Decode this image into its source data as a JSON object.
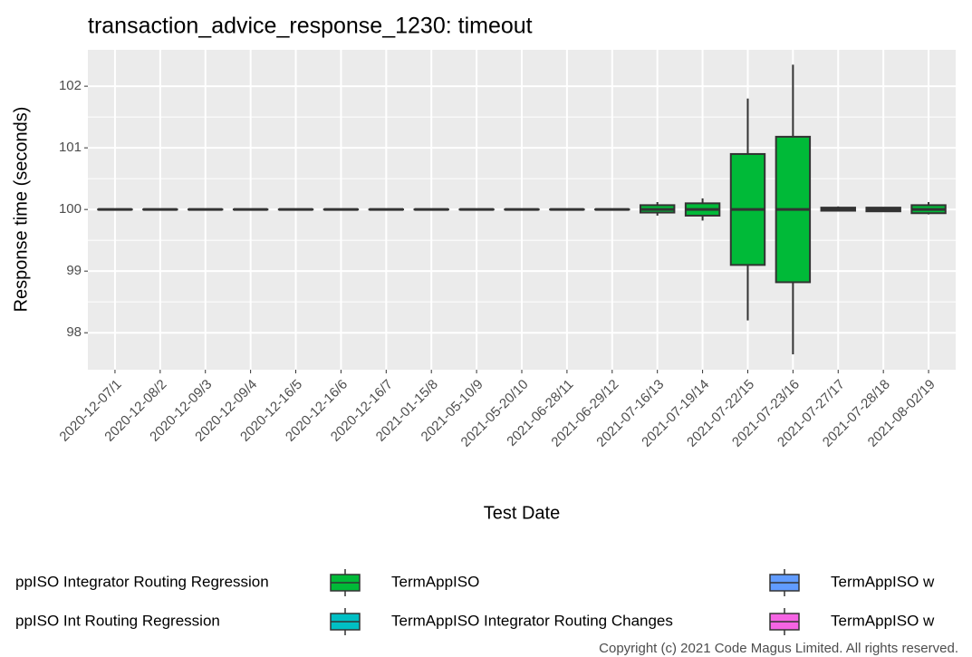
{
  "chart_data": {
    "type": "box",
    "title": "transaction_advice_response_1230: timeout",
    "y_label": "Response time (seconds)",
    "x_label": "Test Date",
    "categories": [
      "2020-12-07/1",
      "2020-12-08/2",
      "2020-12-09/3",
      "2020-12-09/4",
      "2020-12-16/5",
      "2020-12-16/6",
      "2020-12-16/7",
      "2021-01-15/8",
      "2021-05-10/9",
      "2021-05-20/10",
      "2021-06-28/11",
      "2021-06-29/12",
      "2021-07-16/13",
      "2021-07-19/14",
      "2021-07-22/15",
      "2021-07-23/16",
      "2021-07-27/17",
      "2021-07-28/18",
      "2021-08-02/19"
    ],
    "series": [
      {
        "name": "TermAppISO",
        "color": "#00BA38",
        "whisker_low": [
          100,
          100,
          100,
          100,
          100,
          100,
          100,
          100,
          100,
          100,
          100,
          100,
          99.9,
          99.82,
          98.2,
          97.65,
          99.97,
          99.96,
          99.92
        ],
        "q1": [
          100,
          100,
          100,
          100,
          100,
          100,
          100,
          100,
          100,
          100,
          100,
          100,
          99.95,
          99.9,
          99.1,
          98.82,
          99.98,
          99.97,
          99.94
        ],
        "median": [
          100,
          100,
          100,
          100,
          100,
          100,
          100,
          100,
          100,
          100,
          100,
          100,
          100,
          100,
          100,
          100,
          100,
          100,
          100
        ],
        "q3": [
          100,
          100,
          100,
          100,
          100,
          100,
          100,
          100,
          100,
          100,
          100,
          100,
          100.07,
          100.1,
          100.9,
          101.18,
          100.03,
          100.03,
          100.07
        ],
        "whisker_high": [
          100,
          100,
          100,
          100,
          100,
          100,
          100,
          100,
          100,
          100,
          100,
          100,
          100.12,
          100.18,
          101.8,
          102.35,
          100.05,
          100.04,
          100.12
        ]
      }
    ],
    "legend": [
      {
        "name": "ppISO Integrator Routing Regression",
        "color": "#F8766D"
      },
      {
        "name": "ppISO Int Routing Regression",
        "color": "#B79F00"
      },
      {
        "name": "TermAppISO",
        "color": "#00BA38"
      },
      {
        "name": "TermAppISO Integrator Routing Changes",
        "color": "#00BFC4"
      },
      {
        "name": "TermAppISO w",
        "color": "#619CFF"
      },
      {
        "name": "TermAppISO w",
        "color": "#F564E3"
      }
    ],
    "ylim": [
      97.4,
      102.59
    ],
    "yticks": [
      98,
      99,
      100,
      101,
      102
    ],
    "grid": true,
    "footer": "Copyright (c) 2021 Code Magus Limited. All rights reserved."
  }
}
